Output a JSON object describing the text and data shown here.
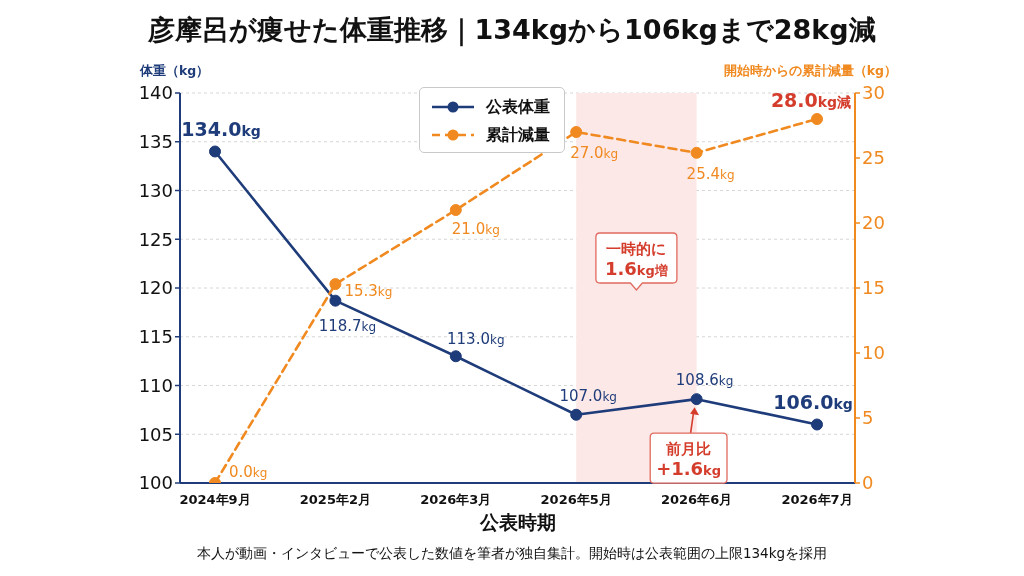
{
  "chart_data": {
    "type": "line",
    "title": "彦摩呂が痩せた体重推移｜134kgから106kgまで28kg減",
    "xlabel": "公表時期",
    "ylabel": "体重（kg）",
    "y2label": "開始時からの累計減量（kg）",
    "categories": [
      "2024年9月",
      "2025年2月",
      "2026年3月",
      "2026年5月",
      "2026年6月",
      "2026年7月"
    ],
    "series": [
      {
        "name": "公表体重",
        "color": "#1f3c7a",
        "line_style": "solid",
        "values": [
          134.0,
          118.7,
          113.0,
          107.0,
          108.6,
          106.0
        ],
        "value_labels": [
          "134.0kg",
          "118.7kg",
          "113.0kg",
          "107.0kg",
          "108.6kg",
          "106.0kg"
        ]
      },
      {
        "name": "累計減量",
        "color": "#f0891f",
        "axis": "y2",
        "line_style": "dashed",
        "values": [
          0.0,
          15.3,
          21.0,
          27.0,
          25.4,
          28.0
        ],
        "value_labels": [
          "0.0kg",
          "15.3kg",
          "21.0kg",
          "27.0kg",
          "25.4kg",
          "28.0kg減"
        ]
      }
    ],
    "ylim": [
      100,
      140
    ],
    "yticks": [
      100,
      105,
      110,
      115,
      120,
      125,
      130,
      135,
      140
    ],
    "y2lim": [
      0,
      30
    ],
    "y2ticks": [
      0,
      5,
      10,
      15,
      20,
      25,
      30
    ],
    "grid": "y",
    "legend": "top",
    "marker": "circle",
    "bands": [
      {
        "axis": "x",
        "from": "2026年5月",
        "to": "2026年6月",
        "label": "一時的に\n1.6kg増",
        "color": "#fde8e8"
      }
    ],
    "annotations": [
      {
        "text": "前月比\n+1.6kg",
        "x": "2026年6月",
        "y": 108.6
      },
      "本人が動画・インタビューで公表した数値を筆者が独自集計。開始時は公表範囲の上限134kgを採用"
    ]
  }
}
